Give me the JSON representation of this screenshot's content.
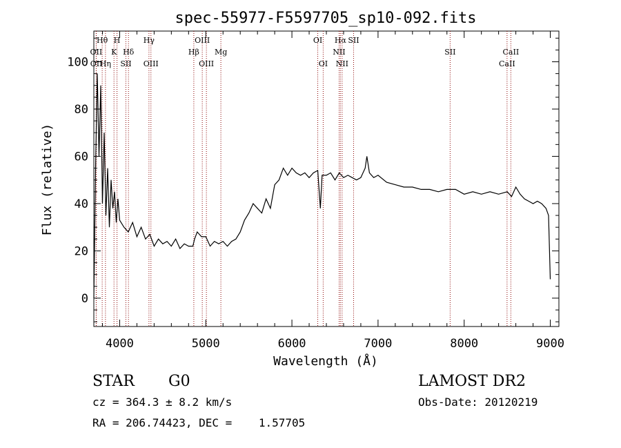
{
  "chart_data": {
    "type": "line",
    "title": "spec-55977-F5597705_sp10-092.fits",
    "xlabel": "Wavelength (Å)",
    "ylabel": "Flux (relative)",
    "xlim": [
      3700,
      9100
    ],
    "ylim": [
      -12,
      113
    ],
    "x_ticks": [
      4000,
      5000,
      6000,
      7000,
      8000,
      9000
    ],
    "y_ticks": [
      0,
      20,
      40,
      60,
      80,
      100
    ],
    "grid": false,
    "legend": "none",
    "line_color": "#000000",
    "marker_color": "#8b0000",
    "series": [
      {
        "x": [
          3700,
          3720,
          3740,
          3760,
          3780,
          3800,
          3820,
          3840,
          3860,
          3880,
          3900,
          3920,
          3940,
          3960,
          3980,
          4000,
          4050,
          4100,
          4150,
          4200,
          4250,
          4300,
          4350,
          4400,
          4450,
          4500,
          4550,
          4600,
          4650,
          4700,
          4750,
          4800,
          4850,
          4870,
          4900,
          4950,
          5000,
          5050,
          5100,
          5150,
          5200,
          5250,
          5300,
          5350,
          5400,
          5450,
          5500,
          5550,
          5600,
          5650,
          5700,
          5750,
          5800,
          5850,
          5900,
          5950,
          6000,
          6050,
          6100,
          6150,
          6200,
          6250,
          6300,
          6330,
          6350,
          6400,
          6450,
          6500,
          6550,
          6600,
          6650,
          6700,
          6750,
          6800,
          6850,
          6870,
          6900,
          6950,
          7000,
          7100,
          7200,
          7300,
          7400,
          7500,
          7600,
          7700,
          7800,
          7900,
          8000,
          8100,
          8200,
          8300,
          8400,
          8500,
          8550,
          8600,
          8650,
          8700,
          8750,
          8800,
          8850,
          8900,
          8950,
          8980,
          9000
        ],
        "y": [
          0,
          55,
          95,
          60,
          90,
          40,
          70,
          35,
          55,
          30,
          50,
          38,
          45,
          32,
          42,
          33,
          30,
          28,
          32,
          26,
          30,
          25,
          27,
          22,
          25,
          23,
          24,
          22,
          25,
          21,
          23,
          22,
          22,
          25,
          28,
          26,
          26,
          22,
          24,
          23,
          24,
          22,
          24,
          25,
          28,
          33,
          36,
          40,
          38,
          36,
          42,
          38,
          48,
          50,
          55,
          52,
          55,
          53,
          52,
          53,
          51,
          53,
          54,
          38,
          52,
          52,
          53,
          50,
          53,
          51,
          52,
          51,
          50,
          51,
          55,
          60,
          53,
          51,
          52,
          49,
          48,
          47,
          47,
          46,
          46,
          45,
          46,
          46,
          44,
          45,
          44,
          45,
          44,
          45,
          43,
          47,
          44,
          42,
          41,
          40,
          41,
          40,
          38,
          35,
          8
        ]
      }
    ],
    "line_markers": [
      {
        "label": "Hθ",
        "x": 3797,
        "row": 1
      },
      {
        "label": "OII",
        "x": 3727,
        "row": 2
      },
      {
        "label": "OII",
        "x": 3729,
        "row": 3
      },
      {
        "label": "Hη",
        "x": 3835,
        "row": 3
      },
      {
        "label": "H",
        "x": 3969,
        "row": 1
      },
      {
        "label": "K",
        "x": 3934,
        "row": 2
      },
      {
        "label": "Hδ",
        "x": 4102,
        "row": 2
      },
      {
        "label": "SII",
        "x": 4072,
        "row": 3
      },
      {
        "label": "Hγ",
        "x": 4340,
        "row": 1
      },
      {
        "label": "OIII",
        "x": 4363,
        "row": 3
      },
      {
        "label": "OIII",
        "x": 4959,
        "row": 1
      },
      {
        "label": "Hβ",
        "x": 4861,
        "row": 2
      },
      {
        "label": "Mg",
        "x": 5175,
        "row": 2
      },
      {
        "label": "OIII",
        "x": 5007,
        "row": 3
      },
      {
        "label": "OI",
        "x": 6300,
        "row": 1
      },
      {
        "label": "OI",
        "x": 6363,
        "row": 3
      },
      {
        "label": "Hα",
        "x": 6563,
        "row": 1
      },
      {
        "label": "SII",
        "x": 6716,
        "row": 1
      },
      {
        "label": "NII",
        "x": 6548,
        "row": 2
      },
      {
        "label": "NII",
        "x": 6583,
        "row": 3
      },
      {
        "label": "SII",
        "x": 7837,
        "row": 2
      },
      {
        "label": "CaII",
        "x": 8542,
        "row": 2
      },
      {
        "label": "CaII",
        "x": 8498,
        "row": 3
      }
    ]
  },
  "info": {
    "object_class": "STAR",
    "subclass": "G0",
    "survey": "LAMOST DR2",
    "cz": "cz = 364.3 ± 8.2 km/s",
    "obs_date": "Obs-Date: 20120219",
    "coords": "RA = 206.74423, DEC =    1.57705"
  }
}
